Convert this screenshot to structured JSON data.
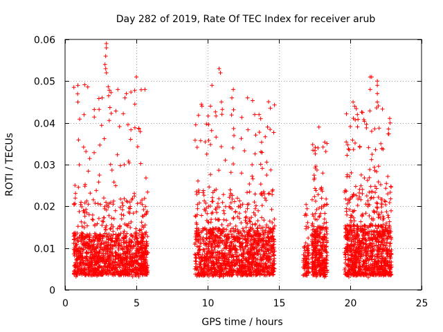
{
  "chart_data": {
    "type": "scatter",
    "title": "Day 282 of 2019, Rate Of TEC Index for receiver arub",
    "xlabel": "GPS time / hours",
    "ylabel": "ROTI / TECUs",
    "xlim": [
      0,
      25
    ],
    "ylim": [
      0,
      0.06
    ],
    "x_ticks": [
      0,
      5,
      10,
      15,
      20,
      25
    ],
    "y_ticks": [
      0,
      0.01,
      0.02,
      0.03,
      0.04,
      0.05,
      0.06
    ],
    "x_tick_labels": [
      "0",
      "5",
      "10",
      "15",
      "20",
      "25"
    ],
    "y_tick_labels": [
      "0",
      "0.01",
      "0.02",
      "0.03",
      "0.04",
      "0.05",
      "0.06"
    ],
    "grid": true,
    "marker": "+",
    "marker_color": "#ff0000",
    "series": [
      {
        "name": "ROTI",
        "clusters": [
          {
            "x_range": [
              0.6,
              5.8
            ],
            "density": 1300,
            "y_typical": [
              0.003,
              0.022
            ],
            "y_max": 0.059
          },
          {
            "x_range": [
              9.1,
              14.7
            ],
            "density": 1400,
            "y_typical": [
              0.003,
              0.024
            ],
            "y_max": 0.053
          },
          {
            "x_range": [
              16.7,
              17.1
            ],
            "density": 80,
            "y_typical": [
              0.003,
              0.017
            ],
            "y_max": 0.023
          },
          {
            "x_range": [
              17.3,
              18.4
            ],
            "density": 350,
            "y_typical": [
              0.003,
              0.025
            ],
            "y_max": 0.039
          },
          {
            "x_range": [
              19.6,
              22.9
            ],
            "density": 1000,
            "y_typical": [
              0.003,
              0.025
            ],
            "y_max": 0.051
          }
        ],
        "highlights": [
          {
            "x": 2.9,
            "y": 0.059
          },
          {
            "x": 2.9,
            "y": 0.058
          },
          {
            "x": 2.85,
            "y": 0.056
          },
          {
            "x": 2.8,
            "y": 0.054
          },
          {
            "x": 2.85,
            "y": 0.053
          },
          {
            "x": 2.9,
            "y": 0.052
          },
          {
            "x": 5.0,
            "y": 0.051
          },
          {
            "x": 0.9,
            "y": 0.049
          },
          {
            "x": 5.6,
            "y": 0.048
          },
          {
            "x": 3.7,
            "y": 0.048
          },
          {
            "x": 4.2,
            "y": 0.046
          },
          {
            "x": 0.9,
            "y": 0.045
          },
          {
            "x": 2.6,
            "y": 0.046
          },
          {
            "x": 4.3,
            "y": 0.047
          },
          {
            "x": 10.8,
            "y": 0.053
          },
          {
            "x": 10.9,
            "y": 0.052
          },
          {
            "x": 10.3,
            "y": 0.049
          },
          {
            "x": 11.8,
            "y": 0.048
          },
          {
            "x": 11.7,
            "y": 0.046
          },
          {
            "x": 12.8,
            "y": 0.046
          },
          {
            "x": 10.2,
            "y": 0.044
          },
          {
            "x": 9.6,
            "y": 0.044
          },
          {
            "x": 14.2,
            "y": 0.039
          },
          {
            "x": 13.6,
            "y": 0.042
          },
          {
            "x": 13.3,
            "y": 0.042
          },
          {
            "x": 17.8,
            "y": 0.039
          },
          {
            "x": 21.5,
            "y": 0.051
          },
          {
            "x": 21.4,
            "y": 0.051
          },
          {
            "x": 21.9,
            "y": 0.05
          },
          {
            "x": 21.9,
            "y": 0.049
          },
          {
            "x": 21.4,
            "y": 0.048
          },
          {
            "x": 21.9,
            "y": 0.047
          },
          {
            "x": 21.9,
            "y": 0.045
          },
          {
            "x": 20.2,
            "y": 0.045
          },
          {
            "x": 20.3,
            "y": 0.044
          },
          {
            "x": 20.5,
            "y": 0.042
          },
          {
            "x": 22.8,
            "y": 0.04
          },
          {
            "x": 21.5,
            "y": 0.038
          }
        ]
      }
    ]
  }
}
